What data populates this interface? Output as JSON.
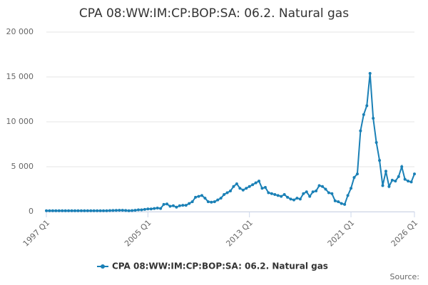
{
  "chart_data": {
    "type": "line",
    "title": "CPA 08:WW:IM:CP:BOP:SA: 06.2. Natural gas",
    "source": "Source:",
    "categories": [
      "1997 Q1",
      null,
      null,
      null,
      null,
      null,
      null,
      null,
      null,
      null,
      null,
      null,
      null,
      null,
      null,
      null,
      null,
      null,
      null,
      null,
      null,
      null,
      null,
      null,
      null,
      null,
      null,
      null,
      null,
      null,
      null,
      null,
      "2005 Q1",
      null,
      null,
      null,
      null,
      null,
      null,
      null,
      null,
      null,
      null,
      null,
      null,
      null,
      null,
      null,
      null,
      null,
      null,
      null,
      null,
      null,
      null,
      null,
      null,
      null,
      null,
      null,
      null,
      null,
      null,
      null,
      "2013 Q1",
      null,
      null,
      null,
      null,
      null,
      null,
      null,
      null,
      null,
      null,
      null,
      null,
      null,
      null,
      null,
      null,
      null,
      null,
      null,
      null,
      null,
      null,
      null,
      null,
      null,
      null,
      null,
      null,
      null,
      null,
      null,
      "2021 Q1",
      null,
      null,
      null,
      null,
      null,
      null,
      null,
      null,
      null,
      null,
      null,
      null,
      null,
      null,
      null,
      null,
      null,
      null,
      null,
      "2026 Q1"
    ],
    "series": [
      {
        "name": "CPA 08:WW:IM:CP:BOP:SA: 06.2. Natural gas",
        "color": "#1a80b6",
        "values": [
          100,
          100,
          100,
          100,
          100,
          100,
          100,
          100,
          100,
          100,
          100,
          100,
          100,
          100,
          100,
          100,
          100,
          100,
          100,
          100,
          120,
          130,
          140,
          150,
          150,
          130,
          100,
          120,
          150,
          200,
          200,
          250,
          300,
          300,
          350,
          400,
          350,
          800,
          850,
          600,
          650,
          500,
          650,
          700,
          700,
          900,
          1100,
          1600,
          1700,
          1800,
          1500,
          1100,
          1050,
          1100,
          1300,
          1500,
          1900,
          2100,
          2300,
          2800,
          3100,
          2600,
          2400,
          2600,
          2800,
          3000,
          3200,
          3400,
          2600,
          2700,
          2100,
          2000,
          1900,
          1800,
          1700,
          1900,
          1600,
          1400,
          1300,
          1500,
          1400,
          2000,
          2200,
          1700,
          2200,
          2300,
          2900,
          2800,
          2500,
          2100,
          2000,
          1200,
          1100,
          900,
          800,
          1800,
          2600,
          3800,
          4200,
          9000,
          10800,
          11800,
          15400,
          10400,
          7700,
          5700,
          2900,
          4500,
          2800,
          3500,
          3400,
          3900,
          5000,
          3600,
          3400,
          3300,
          4200
        ]
      }
    ],
    "ylim": [
      0,
      20000
    ],
    "yticks": [
      0,
      {
        "value": 5000,
        "label": "5 000"
      },
      {
        "value": 10000,
        "label": "10 000"
      },
      {
        "value": 15000,
        "label": "15 000"
      },
      {
        "value": 20000,
        "label": "20 000"
      }
    ],
    "grid": true
  }
}
